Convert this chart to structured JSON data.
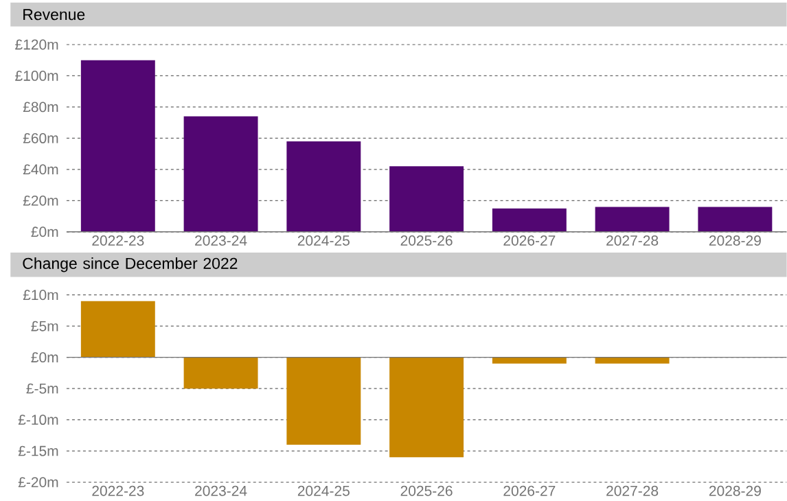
{
  "chart_data": [
    {
      "type": "bar",
      "title": "Revenue",
      "categories": [
        "2022-23",
        "2023-24",
        "2024-25",
        "2025-26",
        "2026-27",
        "2027-28",
        "2028-29"
      ],
      "values": [
        110,
        74,
        58,
        42,
        15,
        16,
        16
      ],
      "color": "#520672",
      "ylim": [
        0,
        120
      ],
      "yticks": [
        {
          "value": 0,
          "label": "£0m"
        },
        {
          "value": 20,
          "label": "£20m"
        },
        {
          "value": 40,
          "label": "£40m"
        },
        {
          "value": 60,
          "label": "£60m"
        },
        {
          "value": 80,
          "label": "£80m"
        },
        {
          "value": 100,
          "label": "£100m"
        },
        {
          "value": 120,
          "label": "£120m"
        }
      ],
      "grid": "y"
    },
    {
      "type": "bar",
      "title": "Change since December 2022",
      "categories": [
        "2022-23",
        "2023-24",
        "2024-25",
        "2025-26",
        "2026-27",
        "2027-28",
        "2028-29"
      ],
      "values": [
        9,
        -5,
        -14,
        -16,
        -1,
        -1,
        0
      ],
      "color": "#c88700",
      "ylim": [
        -20,
        10
      ],
      "yticks": [
        {
          "value": -20,
          "label": "£-20m"
        },
        {
          "value": -15,
          "label": "£-15m"
        },
        {
          "value": -10,
          "label": "£-10m"
        },
        {
          "value": -5,
          "label": "£-5m"
        },
        {
          "value": 0,
          "label": "£0m"
        },
        {
          "value": 5,
          "label": "£5m"
        },
        {
          "value": 10,
          "label": "£10m"
        }
      ],
      "grid": "y"
    }
  ]
}
